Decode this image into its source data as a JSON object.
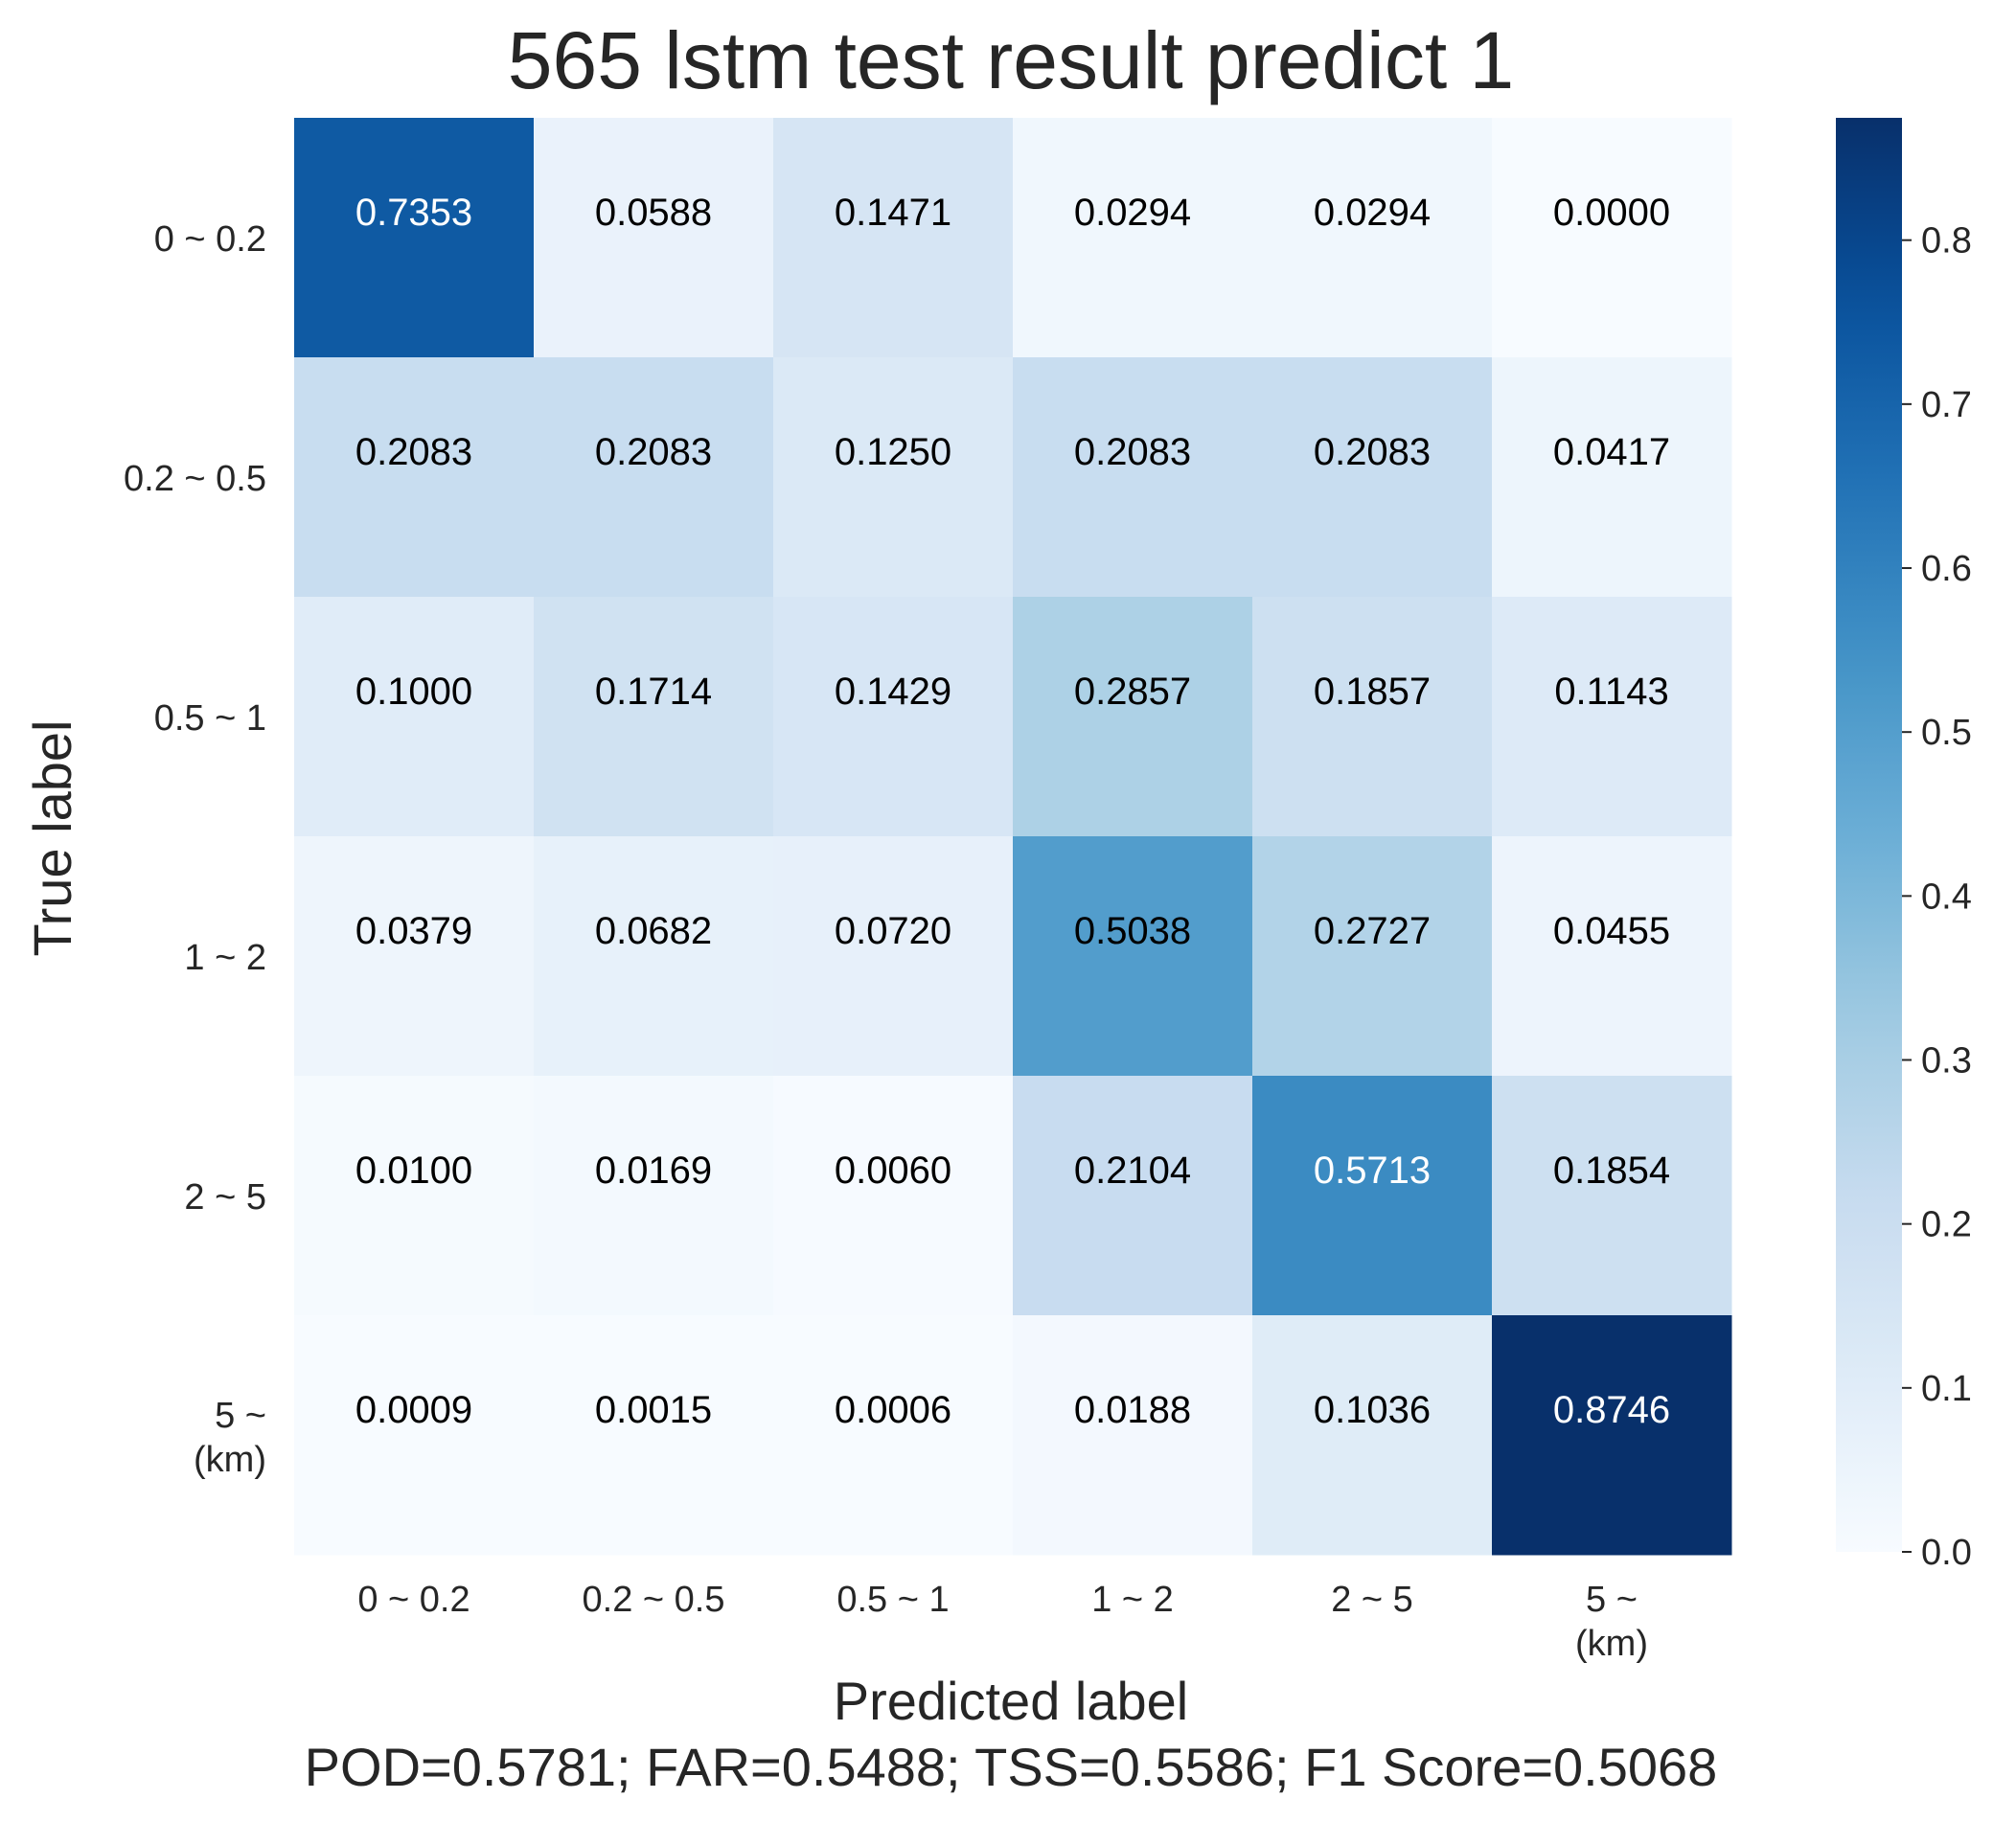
{
  "chart_data": {
    "type": "heatmap",
    "title": "565 lstm test result predict 1",
    "xlabel": "Predicted label",
    "ylabel": "True label",
    "footer": "POD=0.5781; FAR=0.5488; TSS=0.5586; F1 Score=0.5068",
    "x_categories": [
      "0 ~ 0.2",
      "0.2 ~ 0.5",
      "0.5 ~ 1",
      "1 ~ 2",
      "2 ~ 5",
      "5 ~\n(km)"
    ],
    "y_categories": [
      "0 ~ 0.2",
      "0.2 ~ 0.5",
      "0.5 ~ 1",
      "1 ~ 2",
      "2 ~ 5",
      "5 ~\n(km)"
    ],
    "values": [
      [
        0.7353,
        0.0588,
        0.1471,
        0.0294,
        0.0294,
        0.0
      ],
      [
        0.2083,
        0.2083,
        0.125,
        0.2083,
        0.2083,
        0.0417
      ],
      [
        0.1,
        0.1714,
        0.1429,
        0.2857,
        0.1857,
        0.1143
      ],
      [
        0.0379,
        0.0682,
        0.072,
        0.5038,
        0.2727,
        0.0455
      ],
      [
        0.01,
        0.0169,
        0.006,
        0.2104,
        0.5713,
        0.1854
      ],
      [
        0.0009,
        0.0015,
        0.0006,
        0.0188,
        0.1036,
        0.8746
      ]
    ],
    "value_format": "4 decimals",
    "colormap": "Blues",
    "color_range": [
      0,
      0.8746
    ],
    "colorbar_ticks": [
      "0.0",
      "0.1",
      "0.2",
      "0.3",
      "0.4",
      "0.5",
      "0.6",
      "0.7",
      "0.8"
    ],
    "colorbar_tick_values": [
      0.0,
      0.1,
      0.2,
      0.3,
      0.4,
      0.5,
      0.6,
      0.7,
      0.8
    ],
    "grid": false,
    "colors": {
      "text_dark": "#000000",
      "text_light": "#ffffff",
      "label_text": "#262626"
    }
  }
}
